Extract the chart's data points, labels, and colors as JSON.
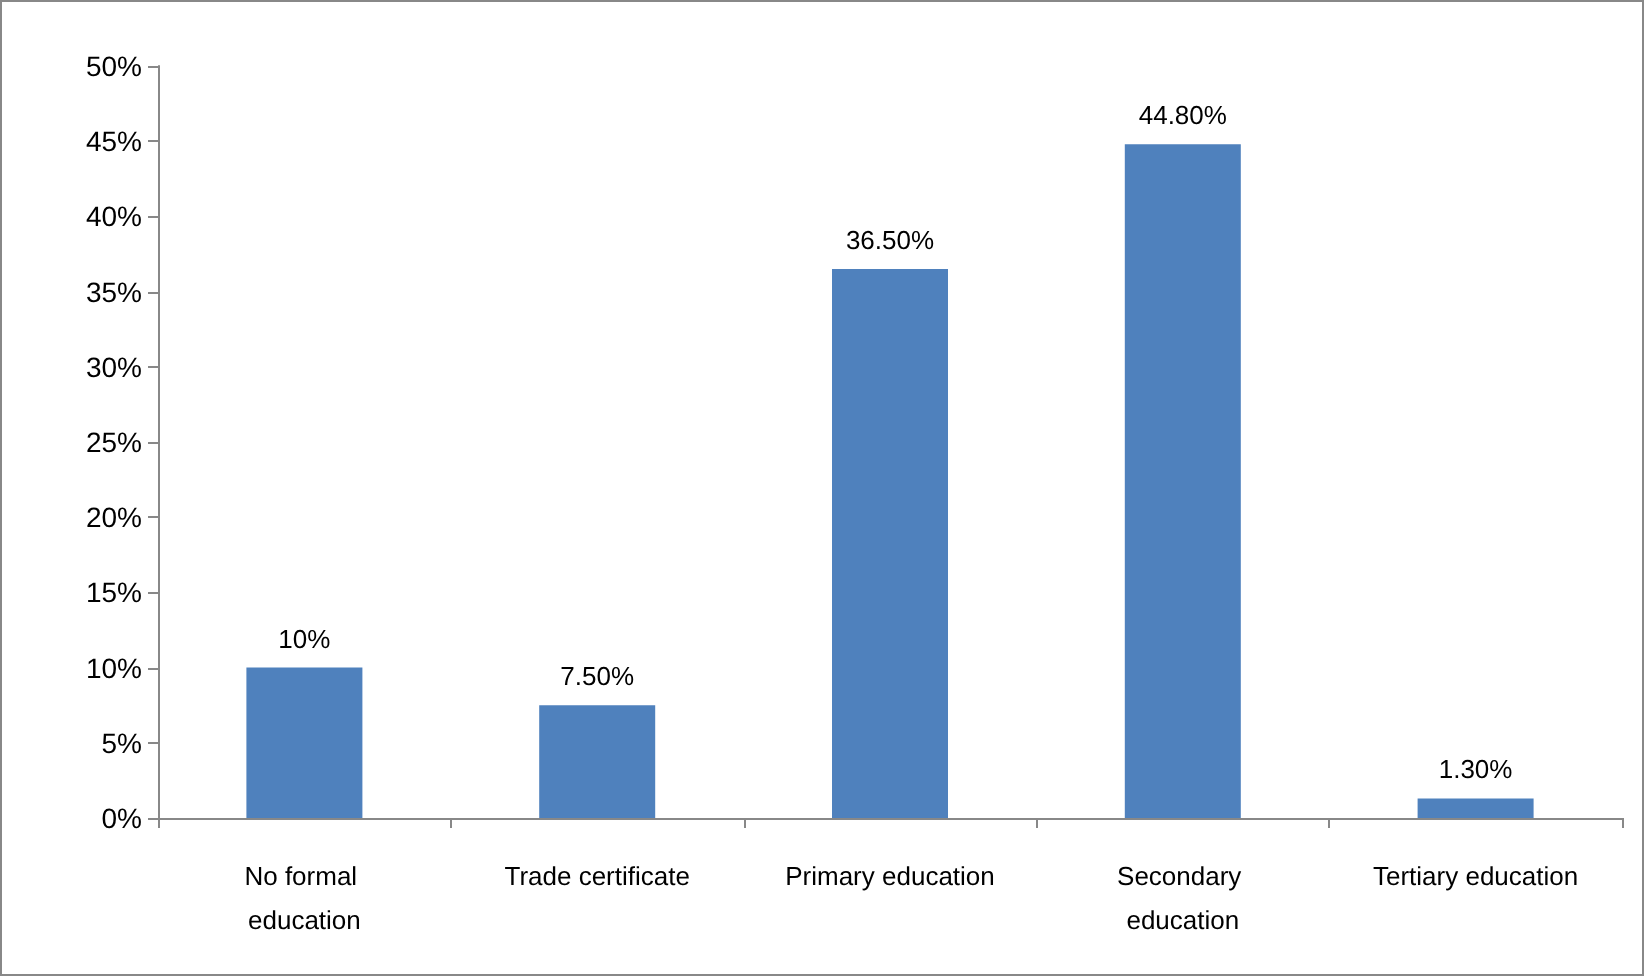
{
  "chart_data": {
    "type": "bar",
    "categories": [
      "No formal education",
      "Trade certificate",
      "Primary education",
      "Secondary education",
      "Tertiary education"
    ],
    "values": [
      10,
      7.5,
      36.5,
      44.8,
      1.3
    ],
    "value_labels": [
      "10%",
      "7.50%",
      "36.50%",
      "44.80%",
      "1.30%"
    ],
    "color": "#4f81bd",
    "ylim": [
      0,
      50
    ],
    "yticks": [
      {
        "value": 0,
        "label": "0%"
      },
      {
        "value": 5,
        "label": "5%"
      },
      {
        "value": 10,
        "label": "10%"
      },
      {
        "value": 15,
        "label": "15%"
      },
      {
        "value": 20,
        "label": "20%"
      },
      {
        "value": 25,
        "label": "25%"
      },
      {
        "value": 30,
        "label": "30%"
      },
      {
        "value": 35,
        "label": "35%"
      },
      {
        "value": 40,
        "label": "40%"
      },
      {
        "value": 45,
        "label": "45%"
      },
      {
        "value": 50,
        "label": "50%"
      }
    ],
    "grid": false
  }
}
